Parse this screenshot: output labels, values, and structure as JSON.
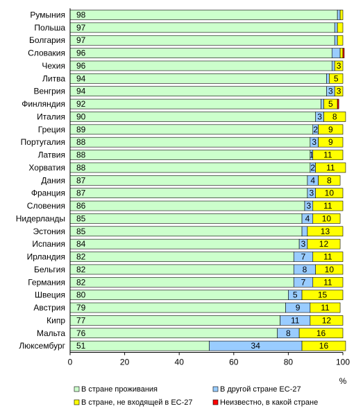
{
  "chart_data": {
    "type": "bar",
    "orientation": "horizontal",
    "stacked": true,
    "unit_label": "%",
    "xlim": [
      0,
      100
    ],
    "x_ticks": [
      0,
      20,
      40,
      60,
      80,
      100
    ],
    "grid": false,
    "legend_position": "bottom",
    "categories": [
      "Румыния",
      "Польша",
      "Болгария",
      "Словакия",
      "Чехия",
      "Литва",
      "Венгрия",
      "Финляндия",
      "Италия",
      "Греция",
      "Португалия",
      "Латвия",
      "Хорватия",
      "Дания",
      "Франция",
      "Словения",
      "Нидерланды",
      "Эстония",
      "Испания",
      "Ирландия",
      "Бельгия",
      "Германия",
      "Швеция",
      "Австрия",
      "Кипр",
      "Мальта",
      "Люксембург"
    ],
    "series": [
      {
        "name": "В стране проживания",
        "color": "#ccffcc",
        "values": [
          98,
          97,
          97,
          96,
          96,
          94,
          94,
          92,
          90,
          89,
          88,
          88,
          88,
          87,
          87,
          86,
          85,
          85,
          84,
          82,
          82,
          82,
          80,
          79,
          77,
          76,
          51
        ]
      },
      {
        "name": "В другой стране ЕС-27",
        "color": "#99ccff",
        "values": [
          1,
          1,
          1,
          3,
          1,
          1,
          3,
          1,
          3,
          2,
          3,
          1,
          2,
          4,
          3,
          3,
          4,
          2,
          3,
          7,
          8,
          7,
          5,
          9,
          11,
          8,
          34
        ]
      },
      {
        "name": "В стране, не входящей в ЕС-27",
        "color": "#ffff00",
        "values": [
          1,
          2,
          2,
          1,
          3,
          5,
          3,
          5,
          8,
          9,
          9,
          11,
          11,
          8,
          10,
          11,
          10,
          13,
          12,
          11,
          10,
          11,
          15,
          11,
          12,
          16,
          16
        ]
      },
      {
        "name": "Неизвестно, в какой стране",
        "color": "#ff0000",
        "values": [
          0,
          0,
          0,
          0.5,
          0,
          0,
          0,
          0.5,
          0,
          0,
          0,
          0,
          0,
          0,
          0,
          0,
          0,
          0,
          0,
          0,
          0,
          0,
          0,
          0,
          0,
          0,
          0
        ]
      }
    ],
    "data_labels": {
      "s0": [
        "98",
        "97",
        "97",
        "96",
        "96",
        "94",
        "94",
        "92",
        "90",
        "89",
        "88",
        "88",
        "88",
        "87",
        "87",
        "86",
        "85",
        "85",
        "84",
        "82",
        "82",
        "82",
        "80",
        "79",
        "77",
        "76",
        "51"
      ],
      "s1": [
        "",
        "",
        "",
        "",
        "",
        "",
        "3",
        "",
        "3",
        "2",
        "3",
        "1",
        "2",
        "4",
        "3",
        "3",
        "4",
        "",
        "3",
        "7",
        "8",
        "7",
        "5",
        "9",
        "11",
        "8",
        "34"
      ],
      "s2": [
        "",
        "",
        "",
        "",
        "3",
        "5",
        "3",
        "5",
        "8",
        "9",
        "9",
        "11",
        "11",
        "8",
        "10",
        "11",
        "10",
        "13",
        "12",
        "11",
        "10",
        "11",
        "15",
        "11",
        "12",
        "16",
        "16"
      ]
    }
  }
}
